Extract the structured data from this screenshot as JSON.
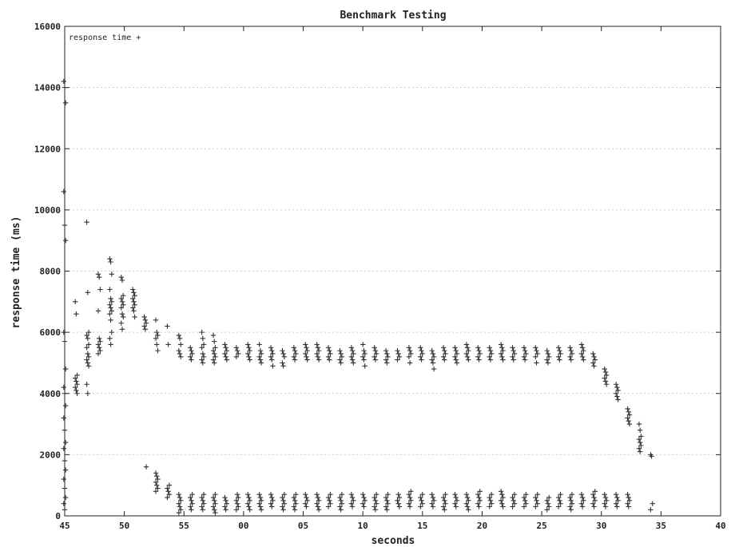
{
  "chart_data": {
    "type": "scatter",
    "title": "Benchmark Testing",
    "xlabel": "seconds",
    "ylabel": "response time (ms)",
    "legend": {
      "label": "response time +",
      "placement": "top-left"
    },
    "grid": true,
    "marker": "+",
    "x_tick_labels": [
      "45",
      "50",
      "55",
      "00",
      "05",
      "10",
      "15",
      "20",
      "25",
      "30",
      "35",
      "40"
    ],
    "y_tick_labels": [
      "0",
      "2000",
      "4000",
      "6000",
      "8000",
      "10000",
      "12000",
      "14000",
      "16000"
    ],
    "xlim": [
      0,
      57
    ],
    "ylim": [
      0,
      16000
    ],
    "series": [
      {
        "name": "response time",
        "clusters": [
          {
            "x": 0,
            "values": [
              14200,
              14000,
              13500,
              10600,
              9500,
              9000,
              6000,
              5700,
              4800,
              4200,
              4000,
              3600,
              3200,
              2800,
              2400,
              2200,
              1800,
              1500,
              1200,
              900,
              600,
              400,
              200
            ]
          },
          {
            "x": 1,
            "values": [
              7000,
              6600,
              4600,
              4500,
              4400,
              4300,
              4200,
              4100,
              4000
            ]
          },
          {
            "x": 2,
            "values": [
              9600,
              7300,
              6000,
              5900,
              5800,
              5600,
              5500,
              5300,
              5200,
              5100,
              5000,
              4900,
              4300,
              4000
            ]
          },
          {
            "x": 3,
            "values": [
              7900,
              7800,
              7400,
              6700,
              5800,
              5700,
              5600,
              5500,
              5400,
              5300
            ]
          },
          {
            "x": 4,
            "values": [
              8400,
              8300,
              7900,
              7400,
              7100,
              7000,
              6900,
              6800,
              6700,
              6600,
              6400,
              6000,
              5800,
              5600
            ]
          },
          {
            "x": 5,
            "values": [
              7800,
              7700,
              7200,
              7100,
              7000,
              6900,
              6800,
              6600,
              6500,
              6300,
              6100
            ]
          },
          {
            "x": 6,
            "values": [
              7400,
              7300,
              7200,
              7100,
              7000,
              6900,
              6800,
              6700,
              6500
            ]
          },
          {
            "x": 7,
            "values": [
              6500,
              6400,
              6300,
              6200,
              6100,
              1600
            ]
          },
          {
            "x": 8,
            "values": [
              6400,
              6000,
              5900,
              5800,
              5600,
              5400,
              1400,
              1300,
              1200,
              1100,
              1000,
              900,
              800
            ]
          },
          {
            "x": 9,
            "values": [
              6200,
              5600,
              1000,
              900,
              800,
              700,
              600
            ]
          },
          {
            "x": 10,
            "values": [
              5900,
              5800,
              5600,
              5400,
              5300,
              5200,
              700,
              600,
              500,
              400,
              300,
              200,
              100
            ]
          },
          {
            "x": 11,
            "values": [
              5500,
              5400,
              5300,
              5200,
              5100,
              700,
              600,
              500,
              400,
              300,
              200
            ]
          },
          {
            "x": 12,
            "values": [
              6000,
              5800,
              5600,
              5500,
              5300,
              5200,
              5100,
              5000,
              700,
              600,
              500,
              400,
              300,
              200
            ]
          },
          {
            "x": 13,
            "values": [
              5900,
              5700,
              5500,
              5400,
              5300,
              5200,
              5100,
              5000,
              700,
              600,
              500,
              400,
              300,
              200,
              100
            ]
          },
          {
            "x": 14,
            "values": [
              5600,
              5500,
              5400,
              5300,
              5200,
              5100,
              600,
              500,
              400,
              300,
              200
            ]
          },
          {
            "x": 15,
            "values": [
              5500,
              5400,
              5300,
              5200,
              700,
              600,
              500,
              400,
              300,
              200
            ]
          },
          {
            "x": 16,
            "values": [
              5600,
              5500,
              5400,
              5300,
              5200,
              5100,
              700,
              600,
              500,
              400,
              300,
              200
            ]
          },
          {
            "x": 17,
            "values": [
              5600,
              5400,
              5300,
              5200,
              5100,
              5000,
              700,
              600,
              500,
              400,
              300,
              200
            ]
          },
          {
            "x": 18,
            "values": [
              5500,
              5400,
              5300,
              5200,
              5100,
              4900,
              700,
              600,
              500,
              400,
              300
            ]
          },
          {
            "x": 19,
            "values": [
              5400,
              5300,
              5200,
              5000,
              4900,
              700,
              600,
              500,
              400,
              300,
              200
            ]
          },
          {
            "x": 20,
            "values": [
              5500,
              5400,
              5300,
              5200,
              5100,
              700,
              600,
              500,
              400,
              300,
              200
            ]
          },
          {
            "x": 21,
            "values": [
              5600,
              5500,
              5400,
              5300,
              5200,
              5100,
              700,
              600,
              500,
              400,
              300
            ]
          },
          {
            "x": 22,
            "values": [
              5600,
              5500,
              5400,
              5300,
              5200,
              5100,
              700,
              600,
              500,
              400,
              300,
              200
            ]
          },
          {
            "x": 23,
            "values": [
              5500,
              5400,
              5300,
              5200,
              5100,
              700,
              600,
              500,
              400,
              300
            ]
          },
          {
            "x": 24,
            "values": [
              5400,
              5300,
              5200,
              5100,
              5000,
              700,
              600,
              500,
              400,
              300,
              200
            ]
          },
          {
            "x": 25,
            "values": [
              5500,
              5400,
              5300,
              5200,
              5100,
              5000,
              700,
              600,
              500,
              400,
              300
            ]
          },
          {
            "x": 26,
            "values": [
              5600,
              5400,
              5300,
              5200,
              5100,
              4900,
              700,
              600,
              500,
              400,
              300
            ]
          },
          {
            "x": 27,
            "values": [
              5500,
              5400,
              5300,
              5200,
              5100,
              700,
              600,
              500,
              400,
              300,
              200
            ]
          },
          {
            "x": 28,
            "values": [
              5400,
              5300,
              5200,
              5100,
              5000,
              700,
              600,
              500,
              400,
              300,
              200
            ]
          },
          {
            "x": 29,
            "values": [
              5400,
              5300,
              5200,
              5100,
              700,
              600,
              500,
              400,
              300
            ]
          },
          {
            "x": 30,
            "values": [
              5500,
              5400,
              5300,
              5200,
              5000,
              800,
              700,
              600,
              500,
              400,
              300
            ]
          },
          {
            "x": 31,
            "values": [
              5500,
              5400,
              5300,
              5200,
              5100,
              700,
              600,
              500,
              400,
              300
            ]
          },
          {
            "x": 32,
            "values": [
              5400,
              5300,
              5200,
              5100,
              5000,
              4800,
              700,
              600,
              500,
              400,
              300
            ]
          },
          {
            "x": 33,
            "values": [
              5500,
              5400,
              5300,
              5200,
              5100,
              700,
              600,
              500,
              400,
              300,
              200
            ]
          },
          {
            "x": 34,
            "values": [
              5500,
              5400,
              5300,
              5200,
              5100,
              5000,
              700,
              600,
              500,
              400,
              300
            ]
          },
          {
            "x": 35,
            "values": [
              5600,
              5500,
              5400,
              5300,
              5200,
              5100,
              700,
              600,
              500,
              400,
              300,
              200
            ]
          },
          {
            "x": 36,
            "values": [
              5500,
              5400,
              5300,
              5200,
              5100,
              800,
              700,
              600,
              500,
              400,
              300
            ]
          },
          {
            "x": 37,
            "values": [
              5500,
              5400,
              5300,
              5200,
              5100,
              700,
              600,
              500,
              400,
              300
            ]
          },
          {
            "x": 38,
            "values": [
              5600,
              5500,
              5400,
              5300,
              5200,
              5100,
              800,
              700,
              600,
              500,
              400,
              300
            ]
          },
          {
            "x": 39,
            "values": [
              5500,
              5400,
              5300,
              5200,
              5100,
              700,
              600,
              500,
              400,
              300
            ]
          },
          {
            "x": 40,
            "values": [
              5500,
              5400,
              5300,
              5200,
              5100,
              700,
              600,
              500,
              400,
              300
            ]
          },
          {
            "x": 41,
            "values": [
              5500,
              5400,
              5300,
              5200,
              5000,
              700,
              600,
              500,
              400,
              300
            ]
          },
          {
            "x": 42,
            "values": [
              5400,
              5300,
              5200,
              5100,
              5000,
              600,
              500,
              400,
              300,
              200
            ]
          },
          {
            "x": 43,
            "values": [
              5500,
              5400,
              5300,
              5200,
              5100,
              700,
              600,
              500,
              400,
              300
            ]
          },
          {
            "x": 44,
            "values": [
              5500,
              5400,
              5300,
              5200,
              5100,
              700,
              600,
              500,
              400,
              300,
              200
            ]
          },
          {
            "x": 45,
            "values": [
              5600,
              5500,
              5400,
              5300,
              5200,
              5100,
              700,
              600,
              500,
              400,
              300
            ]
          },
          {
            "x": 46,
            "values": [
              5300,
              5200,
              5100,
              5000,
              4900,
              800,
              700,
              600,
              500,
              400,
              300
            ]
          },
          {
            "x": 47,
            "values": [
              4800,
              4700,
              4600,
              4500,
              4400,
              4300,
              700,
              600,
              500,
              400,
              300
            ]
          },
          {
            "x": 48,
            "values": [
              4300,
              4200,
              4100,
              4000,
              3900,
              3800,
              700,
              600,
              500,
              400,
              300
            ]
          },
          {
            "x": 49,
            "values": [
              3500,
              3400,
              3300,
              3200,
              3100,
              3000,
              700,
              600,
              500,
              400,
              300
            ]
          },
          {
            "x": 50,
            "values": [
              3000,
              2800,
              2600,
              2500,
              2400,
              2300,
              2200,
              2100
            ]
          },
          {
            "x": 51,
            "values": [
              2000,
              1950,
              400,
              200
            ]
          }
        ]
      }
    ]
  }
}
